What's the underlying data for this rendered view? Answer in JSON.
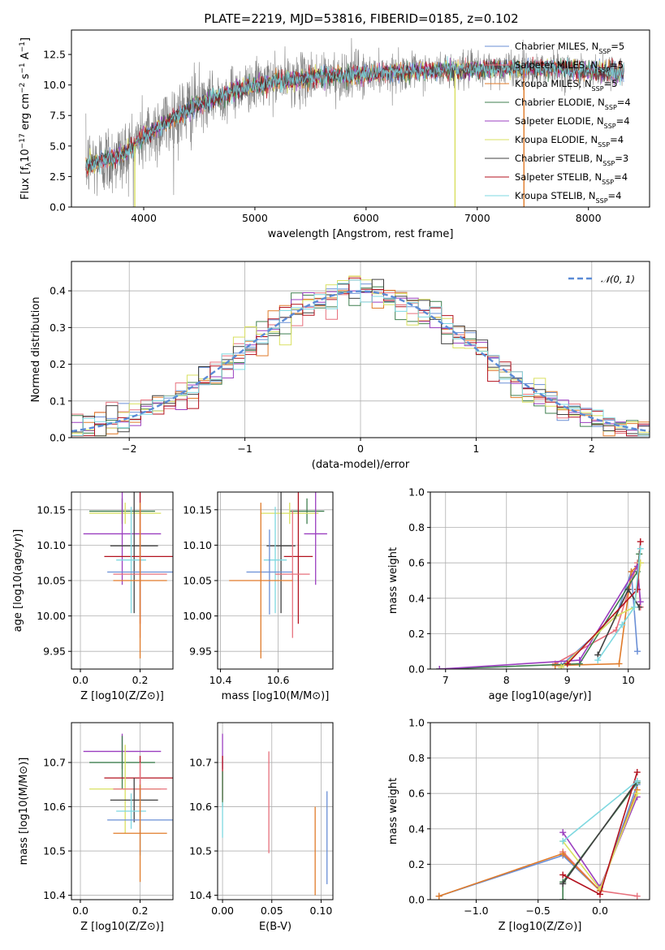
{
  "figure": {
    "title": "PLATE=2219, MJD=53816, FIBERID=0185, z=0.102"
  },
  "colors": {
    "Chabrier MILES": "#6a8fd6",
    "Salpeter MILES": "#e7717d",
    "Kroupa MILES": "#e07b2a",
    "Chabrier ELODIE": "#3f7f4f",
    "Salpeter ELODIE": "#9b3fc0",
    "Kroupa ELODIE": "#d9e060",
    "Chabrier STELIB": "#404040",
    "Salpeter STELIB": "#b3121f",
    "Kroupa STELIB": "#7ed8e0",
    "data_grey": "#808080",
    "grid": "#b0b0b0",
    "gaussian": "#5b8bd6"
  },
  "chart_data": [
    {
      "id": "spectrum",
      "type": "line",
      "title": "PLATE=2219, MJD=53816, FIBERID=0185, z=0.102",
      "xlabel": "wavelength [Angstrom, rest frame]",
      "ylabel": "Flux [f_λ 10^-17 erg cm^-2 s^-1 A^-1]",
      "xlim": [
        3350,
        8550
      ],
      "ylim": [
        0,
        14.5
      ],
      "xticks": [
        4000,
        5000,
        6000,
        7000,
        8000
      ],
      "yticks": [
        0.0,
        2.5,
        5.0,
        7.5,
        10.0,
        12.5
      ],
      "grid": false,
      "legend_position": "top-right",
      "continuum": {
        "x": [
          3480,
          3600,
          3800,
          4000,
          4200,
          4400,
          4600,
          4800,
          5000,
          5200,
          5400,
          5600,
          5800,
          6000,
          6200,
          6400,
          6600,
          6800,
          7000,
          7200,
          7400,
          7600,
          7800,
          8000,
          8200,
          8320
        ],
        "y": [
          3.5,
          3.7,
          4.2,
          5.8,
          6.9,
          8.0,
          8.8,
          9.5,
          10.0,
          10.3,
          10.5,
          10.7,
          10.8,
          10.9,
          11.0,
          11.1,
          11.2,
          11.2,
          11.3,
          11.4,
          11.3,
          11.4,
          11.3,
          11.1,
          11.2,
          11.0
        ]
      },
      "series": [
        {
          "name": "Chabrier MILES",
          "nssp": "5"
        },
        {
          "name": "Salpeter MILES",
          "nssp": "5"
        },
        {
          "name": "Kroupa MILES",
          "nssp": "5"
        },
        {
          "name": "Chabrier ELODIE",
          "nssp": "4"
        },
        {
          "name": "Salpeter ELODIE",
          "nssp": "4"
        },
        {
          "name": "Kroupa ELODIE",
          "nssp": "4"
        },
        {
          "name": "Chabrier STELIB",
          "nssp": "3"
        },
        {
          "name": "Salpeter STELIB",
          "nssp": "4"
        },
        {
          "name": "Kroupa STELIB",
          "nssp": "4"
        }
      ],
      "spikes": [
        {
          "x": 6800,
          "y": 0,
          "series": "Kroupa ELODIE"
        },
        {
          "x": 7420,
          "y": 0,
          "series": "Kroupa MILES"
        },
        {
          "x": 3920,
          "y": 0,
          "series": "Kroupa ELODIE"
        }
      ]
    },
    {
      "id": "residuals",
      "type": "histogram",
      "xlabel": "(data-model)/error",
      "ylabel": "Normed distribution",
      "xlim": [
        -2.5,
        2.5
      ],
      "ylim": [
        0,
        0.48
      ],
      "xticks": [
        -2,
        -1,
        0,
        1,
        2
      ],
      "yticks": [
        0.0,
        0.1,
        0.2,
        0.3,
        0.4
      ],
      "grid": true,
      "bin_width": 0.1,
      "legend_position": "top-right",
      "reference_curve": {
        "label": "𝒩(0, 1)",
        "style": "dashed",
        "mean": 0,
        "sigma": 1
      }
    },
    {
      "id": "age_vs_Z",
      "type": "errorbar",
      "xlabel": "Z [log10(Z/Z⊙)]",
      "ylabel": "age [log10(age/yr)]",
      "xlim": [
        -0.03,
        0.31
      ],
      "ylim": [
        9.925,
        10.175
      ],
      "xticks": [
        0.0,
        0.2
      ],
      "yticks": [
        9.95,
        10.0,
        10.05,
        10.1,
        10.15
      ],
      "grid": true,
      "points": [
        {
          "series": "Chabrier ELODIE",
          "x": 0.14,
          "y": 10.148,
          "xerr": 0.11,
          "yerr": 0.018
        },
        {
          "series": "Kroupa ELODIE",
          "x": 0.15,
          "y": 10.145,
          "xerr": 0.12,
          "yerr": 0.015
        },
        {
          "series": "Salpeter ELODIE",
          "x": 0.14,
          "y": 10.116,
          "xerr": 0.13,
          "yerr": 0.072
        },
        {
          "series": "Chabrier STELIB",
          "x": 0.18,
          "y": 10.099,
          "xerr": 0.08,
          "yerr": 0.095
        },
        {
          "series": "Salpeter STELIB",
          "x": 0.2,
          "y": 10.084,
          "xerr": 0.12,
          "yerr": 0.095
        },
        {
          "series": "Kroupa STELIB",
          "x": 0.17,
          "y": 10.079,
          "xerr": 0.05,
          "yerr": 0.075
        },
        {
          "series": "Chabrier MILES",
          "x": 0.2,
          "y": 10.062,
          "xerr": 0.11,
          "yerr": 0.06
        },
        {
          "series": "Salpeter MILES",
          "x": 0.2,
          "y": 10.059,
          "xerr": 0.09,
          "yerr": 0.09
        },
        {
          "series": "Kroupa MILES",
          "x": 0.2,
          "y": 10.05,
          "xerr": 0.09,
          "yerr": 0.11
        }
      ]
    },
    {
      "id": "age_vs_mass",
      "type": "errorbar",
      "xlabel": "mass [log10(M/M⊙)]",
      "ylabel": "",
      "xlim": [
        10.39,
        10.79
      ],
      "ylim": [
        9.925,
        10.175
      ],
      "xticks": [
        10.4,
        10.6
      ],
      "yticks": [
        9.95,
        10.0,
        10.05,
        10.1,
        10.15
      ],
      "grid": true,
      "points": [
        {
          "series": "Chabrier ELODIE",
          "x": 10.7,
          "y": 10.148,
          "xerr": 0.06,
          "yerr": 0.018
        },
        {
          "series": "Kroupa ELODIE",
          "x": 10.64,
          "y": 10.145,
          "xerr": 0.1,
          "yerr": 0.015
        },
        {
          "series": "Salpeter ELODIE",
          "x": 10.73,
          "y": 10.116,
          "xerr": 0.04,
          "yerr": 0.072
        },
        {
          "series": "Chabrier STELIB",
          "x": 10.61,
          "y": 10.099,
          "xerr": 0.05,
          "yerr": 0.095
        },
        {
          "series": "Salpeter STELIB",
          "x": 10.67,
          "y": 10.084,
          "xerr": 0.05,
          "yerr": 0.095
        },
        {
          "series": "Kroupa STELIB",
          "x": 10.59,
          "y": 10.079,
          "xerr": 0.04,
          "yerr": 0.075
        },
        {
          "series": "Chabrier MILES",
          "x": 10.57,
          "y": 10.062,
          "xerr": 0.08,
          "yerr": 0.06
        },
        {
          "series": "Salpeter MILES",
          "x": 10.65,
          "y": 10.059,
          "xerr": 0.06,
          "yerr": 0.09
        },
        {
          "series": "Kroupa MILES",
          "x": 10.54,
          "y": 10.05,
          "xerr": 0.11,
          "yerr": 0.11
        }
      ]
    },
    {
      "id": "weight_vs_age",
      "type": "line",
      "xlabel": "age [log10(age/yr)]",
      "ylabel": "mass weight",
      "xlim": [
        6.75,
        10.35
      ],
      "ylim": [
        0,
        1.0
      ],
      "xticks": [
        7,
        8,
        9,
        10
      ],
      "yticks": [
        0.0,
        0.2,
        0.4,
        0.6,
        0.8,
        1.0
      ],
      "grid": true,
      "series": [
        {
          "name": "Chabrier MILES",
          "x": [
            8.9,
            9.8,
            10.05,
            10.15
          ],
          "y": [
            0.02,
            0.3,
            0.55,
            0.1
          ]
        },
        {
          "name": "Salpeter MILES",
          "x": [
            8.8,
            9.8,
            10.15,
            10.2
          ],
          "y": [
            0.03,
            0.22,
            0.6,
            0.35
          ]
        },
        {
          "name": "Kroupa MILES",
          "x": [
            8.8,
            9.85,
            10.05,
            10.2
          ],
          "y": [
            0.02,
            0.03,
            0.55,
            0.6
          ]
        },
        {
          "name": "Chabrier ELODIE",
          "x": [
            6.9,
            9.2,
            10.15,
            10.18
          ],
          "y": [
            0.0,
            0.03,
            0.55,
            0.65
          ]
        },
        {
          "name": "Salpeter ELODIE",
          "x": [
            6.9,
            9.2,
            10.15,
            10.2
          ],
          "y": [
            0.0,
            0.05,
            0.58,
            0.38
          ]
        },
        {
          "name": "Kroupa ELODIE",
          "x": [
            8.9,
            9.8,
            10.1,
            10.2
          ],
          "y": [
            0.01,
            0.3,
            0.35,
            0.6
          ]
        },
        {
          "name": "Chabrier STELIB",
          "x": [
            9.5,
            10.0,
            10.18
          ],
          "y": [
            0.08,
            0.45,
            0.35
          ]
        },
        {
          "name": "Salpeter STELIB",
          "x": [
            9.0,
            10.15,
            10.2
          ],
          "y": [
            0.03,
            0.45,
            0.72
          ]
        },
        {
          "name": "Kroupa STELIB",
          "x": [
            9.5,
            9.9,
            10.1,
            10.2
          ],
          "y": [
            0.05,
            0.25,
            0.35,
            0.68
          ]
        }
      ]
    },
    {
      "id": "mass_vs_Z",
      "type": "errorbar",
      "xlabel": "Z [log10(Z/Z⊙)]",
      "ylabel": "mass [log10(M/M⊙)]",
      "xlim": [
        -0.03,
        0.31
      ],
      "ylim": [
        10.39,
        10.79
      ],
      "xticks": [
        0.0,
        0.2
      ],
      "yticks": [
        10.4,
        10.5,
        10.6,
        10.7
      ],
      "grid": true,
      "points": [
        {
          "series": "Salpeter ELODIE",
          "x": 0.14,
          "y": 10.725,
          "xerr": 0.13,
          "yerr": 0.04
        },
        {
          "series": "Chabrier ELODIE",
          "x": 0.14,
          "y": 10.7,
          "xerr": 0.11,
          "yerr": 0.06
        },
        {
          "series": "Salpeter STELIB",
          "x": 0.2,
          "y": 10.665,
          "xerr": 0.12,
          "yerr": 0.05
        },
        {
          "series": "Kroupa ELODIE",
          "x": 0.15,
          "y": 10.64,
          "xerr": 0.12,
          "yerr": 0.1
        },
        {
          "series": "Salpeter MILES",
          "x": 0.2,
          "y": 10.64,
          "xerr": 0.09,
          "yerr": 0.06
        },
        {
          "series": "Chabrier STELIB",
          "x": 0.18,
          "y": 10.615,
          "xerr": 0.08,
          "yerr": 0.05
        },
        {
          "series": "Kroupa STELIB",
          "x": 0.17,
          "y": 10.59,
          "xerr": 0.05,
          "yerr": 0.04
        },
        {
          "series": "Chabrier MILES",
          "x": 0.2,
          "y": 10.57,
          "xerr": 0.11,
          "yerr": 0.08
        },
        {
          "series": "Kroupa MILES",
          "x": 0.2,
          "y": 10.54,
          "xerr": 0.09,
          "yerr": 0.11
        }
      ]
    },
    {
      "id": "mass_vs_ebv",
      "type": "errorbar",
      "xlabel": "E(B-V)",
      "ylabel": "",
      "xlim": [
        -0.005,
        0.112
      ],
      "ylim": [
        10.39,
        10.79
      ],
      "xticks": [
        0.0,
        0.05,
        0.1
      ],
      "yticks": [
        10.4,
        10.5,
        10.6,
        10.7
      ],
      "grid": true,
      "points": [
        {
          "series": "Salpeter ELODIE",
          "x": 0.0,
          "y": 10.725,
          "xerr": 0,
          "yerr": 0.04
        },
        {
          "series": "Salpeter STELIB",
          "x": 0.0,
          "y": 10.665,
          "xerr": 0,
          "yerr": 0.05
        },
        {
          "series": "Chabrier ELODIE",
          "x": 0.0,
          "y": 10.64,
          "xerr": 0,
          "yerr": 0.04
        },
        {
          "series": "Kroupa STELIB",
          "x": 0.0,
          "y": 10.57,
          "xerr": 0,
          "yerr": 0.04
        },
        {
          "series": "Salpeter MILES",
          "x": 0.047,
          "y": 10.61,
          "xerr": 0,
          "yerr": 0.115
        },
        {
          "series": "Kroupa MILES",
          "x": 0.094,
          "y": 10.5,
          "xerr": 0,
          "yerr": 0.1
        },
        {
          "series": "Chabrier MILES",
          "x": 0.106,
          "y": 10.53,
          "xerr": 0,
          "yerr": 0.105
        }
      ]
    },
    {
      "id": "weight_vs_Z",
      "type": "line",
      "xlabel": "Z [log10(Z/Z⊙)]",
      "ylabel": "mass weight",
      "xlim": [
        -1.37,
        0.4
      ],
      "ylim": [
        0,
        1.0
      ],
      "xticks": [
        -1.0,
        -0.5,
        0.0
      ],
      "yticks": [
        0.0,
        0.2,
        0.4,
        0.6,
        0.8,
        1.0
      ],
      "grid": true,
      "series": [
        {
          "name": "Chabrier MILES",
          "x": [
            -1.3,
            -0.3,
            0.0,
            0.3
          ],
          "y": [
            0.02,
            0.25,
            0.05,
            0.65
          ]
        },
        {
          "name": "Salpeter MILES",
          "x": [
            -0.3,
            0.0,
            0.3
          ],
          "y": [
            0.27,
            0.05,
            0.02
          ]
        },
        {
          "name": "Kroupa MILES",
          "x": [
            -1.3,
            -0.3,
            0.0,
            0.3
          ],
          "y": [
            0.02,
            0.26,
            0.05,
            0.62
          ]
        },
        {
          "name": "Chabrier ELODIE",
          "x": [
            -0.3,
            -0.3,
            0.3
          ],
          "y": [
            0.0,
            0.1,
            0.66
          ]
        },
        {
          "name": "Salpeter ELODIE",
          "x": [
            -0.3,
            0.0,
            0.3
          ],
          "y": [
            0.38,
            0.07,
            0.58
          ]
        },
        {
          "name": "Kroupa ELODIE",
          "x": [
            -0.3,
            0.0,
            0.3
          ],
          "y": [
            0.33,
            0.06,
            0.6
          ]
        },
        {
          "name": "Chabrier STELIB",
          "x": [
            -0.3,
            0.3
          ],
          "y": [
            0.09,
            0.67
          ]
        },
        {
          "name": "Salpeter STELIB",
          "x": [
            -0.3,
            0.0,
            0.3
          ],
          "y": [
            0.14,
            0.03,
            0.72
          ]
        },
        {
          "name": "Kroupa STELIB",
          "x": [
            -0.3,
            0.3
          ],
          "y": [
            0.33,
            0.67
          ]
        }
      ]
    }
  ]
}
